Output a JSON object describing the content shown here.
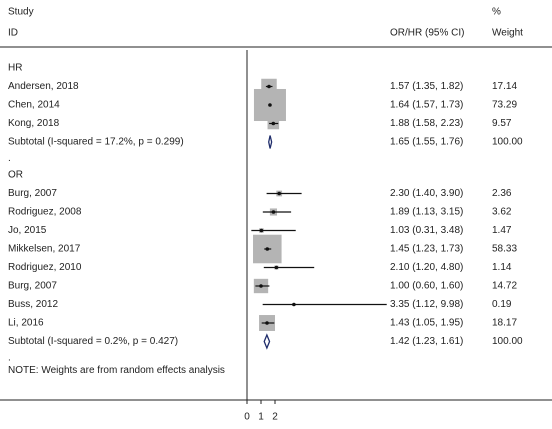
{
  "chart_data": {
    "type": "forest",
    "header": {
      "study": "Study",
      "id": "ID",
      "estimate": "OR/HR (95% CI)",
      "percent": "%",
      "weight": "Weight"
    },
    "xlim": [
      0,
      10
    ],
    "xticks": [
      0,
      1,
      2
    ],
    "null_value": 1,
    "note": "NOTE: Weights are from random effects analysis",
    "box_color": "#b4b4b4",
    "diamond_color": "#1f2d6b",
    "groups": [
      {
        "label": "HR",
        "studies": [
          {
            "name": "Andersen, 2018",
            "est": 1.57,
            "lo": 1.35,
            "hi": 1.82,
            "ci_label": "1.57 (1.35, 1.82)",
            "weight": 17.14
          },
          {
            "name": "Chen, 2014",
            "est": 1.64,
            "lo": 1.57,
            "hi": 1.73,
            "ci_label": "1.64 (1.57, 1.73)",
            "weight": 73.29
          },
          {
            "name": "Kong, 2018",
            "est": 1.88,
            "lo": 1.58,
            "hi": 2.23,
            "ci_label": "1.88 (1.58, 2.23)",
            "weight": 9.57
          }
        ],
        "subtotal": {
          "name": "Subtotal  (I-squared = 17.2%, p = 0.299)",
          "est": 1.65,
          "lo": 1.55,
          "hi": 1.76,
          "ci_label": "1.65 (1.55, 1.76)",
          "weight": {
            "value": 100,
            "label": "100.00"
          }
        },
        "separator": "."
      },
      {
        "label": "OR",
        "studies": [
          {
            "name": "Burg, 2007",
            "est": 2.3,
            "lo": 1.4,
            "hi": 3.9,
            "ci_label": "2.30 (1.40, 3.90)",
            "weight": 2.36
          },
          {
            "name": "Rodriguez, 2008",
            "est": 1.89,
            "lo": 1.13,
            "hi": 3.15,
            "ci_label": "1.89 (1.13, 3.15)",
            "weight": 3.62
          },
          {
            "name": "Jo, 2015",
            "est": 1.03,
            "lo": 0.31,
            "hi": 3.48,
            "ci_label": "1.03 (0.31, 3.48)",
            "weight": 1.47
          },
          {
            "name": "Mikkelsen, 2017",
            "est": 1.45,
            "lo": 1.23,
            "hi": 1.73,
            "ci_label": "1.45 (1.23, 1.73)",
            "weight": 58.33
          },
          {
            "name": "Rodriguez, 2010",
            "est": 2.1,
            "lo": 1.2,
            "hi": 4.8,
            "ci_label": "2.10 (1.20, 4.80)",
            "weight": 1.14
          },
          {
            "name": "Burg, 2007",
            "est": 1.0,
            "lo": 0.6,
            "hi": 1.6,
            "ci_label": "1.00 (0.60, 1.60)",
            "weight": 14.72
          },
          {
            "name": "Buss, 2012",
            "est": 3.35,
            "lo": 1.12,
            "hi": 9.98,
            "ci_label": "3.35 (1.12, 9.98)",
            "weight": 0.19
          },
          {
            "name": "Li, 2016",
            "est": 1.43,
            "lo": 1.05,
            "hi": 1.95,
            "ci_label": "1.43 (1.05, 1.95)",
            "weight": 18.17
          }
        ],
        "subtotal": {
          "name": "Subtotal  (I-squared = 0.2%, p = 0.427)",
          "est": 1.42,
          "lo": 1.23,
          "hi": 1.61,
          "ci_label": "1.42 (1.23, 1.61)",
          "weight": {
            "value": 100,
            "label": "100.00"
          }
        },
        "separator": "."
      }
    ]
  }
}
